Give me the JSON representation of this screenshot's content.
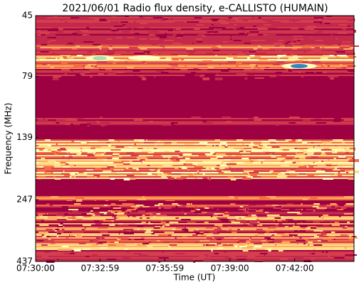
{
  "chart_data": {
    "type": "spectrogram",
    "title": "2021/06/01  Radio flux density, e-CALLISTO (HUMAIN)",
    "xlabel": "Time (UT)",
    "ylabel": "Frequency (MHz)",
    "xlim": [
      "07:30:00",
      "07:44:45"
    ],
    "xticks": [
      "07:30:00",
      "07:32:59",
      "07:35:59",
      "07:39:00",
      "07:42:00"
    ],
    "ylim": [
      45,
      437
    ],
    "yticks": [
      45,
      79,
      139,
      247,
      437
    ],
    "ylog": true,
    "yinverted": true
  }
}
